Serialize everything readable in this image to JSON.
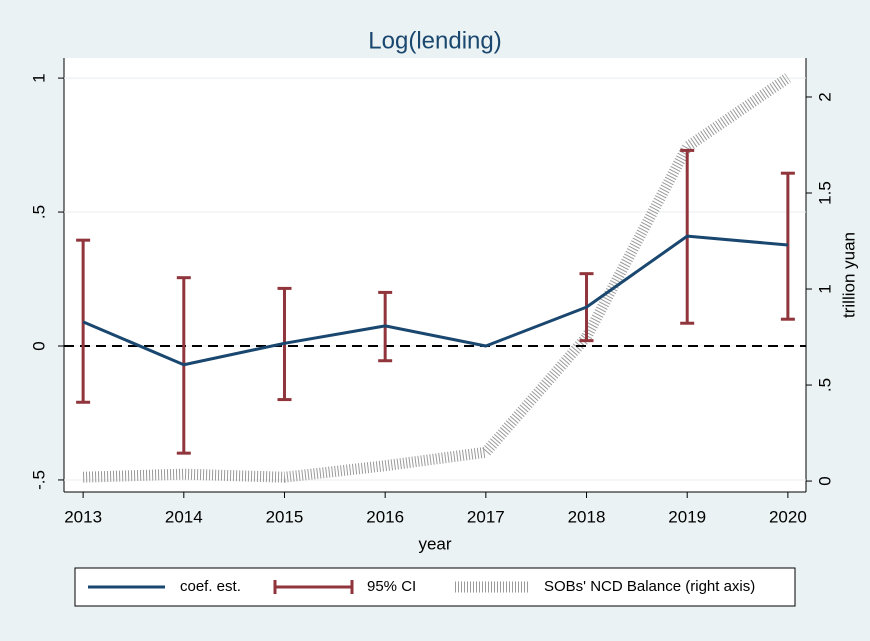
{
  "chart_data": {
    "type": "line",
    "title": "Log(lending)",
    "xlabel": "year",
    "y2label": "trillion yuan",
    "x": [
      2013,
      2014,
      2015,
      2016,
      2017,
      2018,
      2019,
      2020
    ],
    "xlim": [
      2012.81,
      2020.18
    ],
    "xticks": [
      2013,
      2014,
      2015,
      2016,
      2017,
      2018,
      2019,
      2020
    ],
    "ylim": [
      -0.545,
      1.075
    ],
    "yticks": [
      {
        "value": -0.5,
        "label": "-.5"
      },
      0,
      {
        "value": 0.5,
        "label": ".5"
      },
      1
    ],
    "y2lim": [
      -0.057,
      2.203
    ],
    "y2ticks": [
      0,
      {
        "value": 0.5,
        "label": ".5"
      },
      1,
      1.5,
      2
    ],
    "grid": true,
    "yline": 0,
    "series": [
      {
        "name": "coef. est.",
        "color": "#1a476f",
        "values": [
          0.09,
          -0.07,
          0.01,
          0.075,
          0,
          0.145,
          0.41,
          0.377
        ]
      },
      {
        "name": "95% CI",
        "type": "errorbar",
        "color": "#90353b",
        "low": [
          -0.21,
          -0.4,
          -0.2,
          -0.055,
          null,
          0.02,
          0.085,
          0.1
        ],
        "high": [
          0.395,
          0.255,
          0.215,
          0.2,
          null,
          0.27,
          0.73,
          0.645
        ]
      },
      {
        "name": "SOBs' NCD Balance (right axis)",
        "color": "#9a9a9a",
        "axis": "y2",
        "style": "hatched",
        "values": [
          0.02,
          0.036,
          0.02,
          0.08,
          0.15,
          0.75,
          1.74,
          2.1
        ]
      }
    ]
  }
}
